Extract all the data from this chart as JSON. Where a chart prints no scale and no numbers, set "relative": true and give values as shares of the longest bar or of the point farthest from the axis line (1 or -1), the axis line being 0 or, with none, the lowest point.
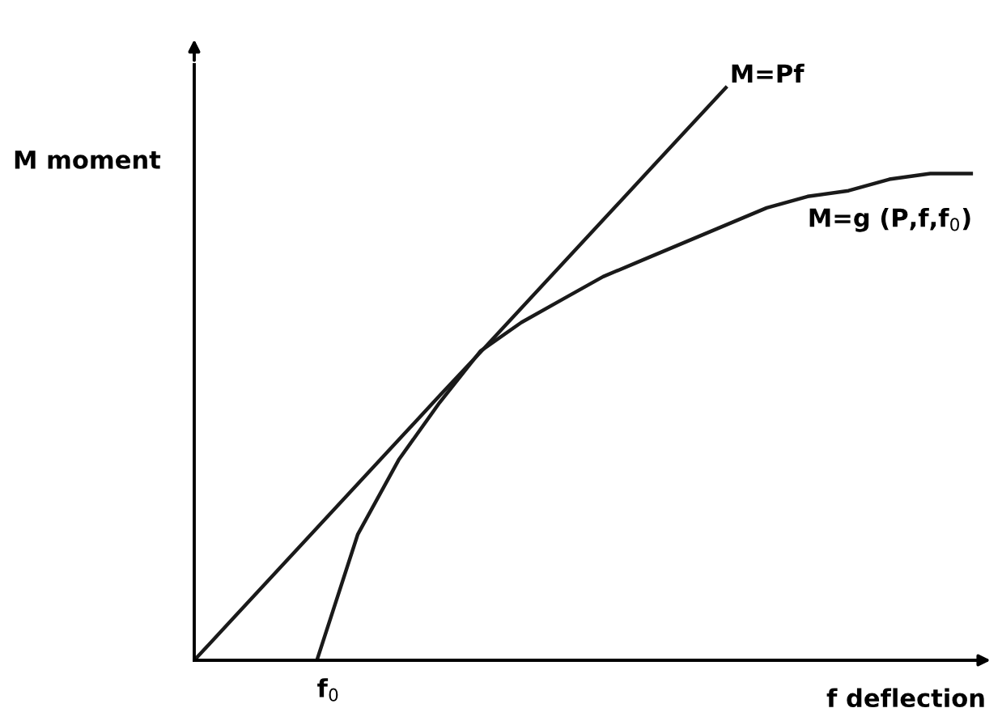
{
  "chart_data": {
    "type": "line",
    "relative": true,
    "xlabel": "f deflection",
    "ylabel": "M moment",
    "categories": [
      null,
      null,
      null,
      null,
      null,
      null,
      null,
      null,
      null,
      null,
      null,
      null,
      null,
      null,
      null,
      null,
      null,
      null,
      null,
      null
    ],
    "series": [
      {
        "name": "M=Pf",
        "color": "#1a1a1a",
        "values": [
          0,
          0.077,
          0.154,
          0.231,
          0.308,
          0.385,
          0.462,
          0.538,
          0.615,
          0.692,
          0.769,
          0.846,
          0.923,
          1,
          null,
          null,
          null,
          null,
          null,
          null
        ]
      },
      {
        "name": "M=g (P,f,f$_{0}$)",
        "color": "#1a1a1a",
        "values": [
          null,
          null,
          null,
          0,
          0.22,
          0.35,
          0.45,
          0.54,
          0.59,
          0.63,
          0.67,
          0.7,
          0.73,
          0.76,
          0.79,
          0.81,
          0.82,
          0.84,
          0.85,
          0.85
        ]
      }
    ],
    "annotations": [
      "f$_{0}$"
    ],
    "legend": false,
    "marker": "none",
    "line_style": "solid"
  }
}
